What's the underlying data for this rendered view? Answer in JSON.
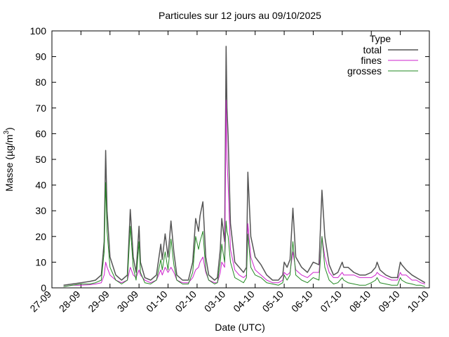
{
  "chart_data": {
    "type": "line",
    "title": "Particules sur 12 jours au 09/10/2025",
    "xlabel": "Date (UTC)",
    "ylabel": "Masse (µg/m",
    "ylabel_superscript": "3",
    "ylabel_suffix": ")",
    "ylim": [
      0,
      100
    ],
    "yticks": [
      0,
      10,
      20,
      30,
      40,
      50,
      60,
      70,
      80,
      90,
      100
    ],
    "xlim": [
      0,
      13
    ],
    "xticks": [
      "27-09",
      "28-09",
      "29-09",
      "30-09",
      "01-10",
      "02-10",
      "03-10",
      "04-10",
      "05-10",
      "06-10",
      "07-10",
      "08-10",
      "09-10",
      "10-10"
    ],
    "grid": false,
    "legend": {
      "title": "Type",
      "placement": "top-right"
    },
    "series": [
      {
        "name": "total",
        "color": "#555555",
        "points": [
          [
            0.4,
            1
          ],
          [
            0.7,
            1.5
          ],
          [
            1.0,
            2
          ],
          [
            1.3,
            2.5
          ],
          [
            1.5,
            3
          ],
          [
            1.7,
            5
          ],
          [
            1.8,
            18
          ],
          [
            1.85,
            53.5
          ],
          [
            1.9,
            30
          ],
          [
            2.0,
            12
          ],
          [
            2.2,
            5
          ],
          [
            2.4,
            3
          ],
          [
            2.6,
            5
          ],
          [
            2.7,
            30.5
          ],
          [
            2.8,
            12
          ],
          [
            2.9,
            6
          ],
          [
            3.0,
            24
          ],
          [
            3.05,
            10
          ],
          [
            3.2,
            4
          ],
          [
            3.4,
            3
          ],
          [
            3.6,
            5
          ],
          [
            3.75,
            17
          ],
          [
            3.8,
            11
          ],
          [
            3.9,
            21
          ],
          [
            4.0,
            12
          ],
          [
            4.1,
            26
          ],
          [
            4.2,
            14
          ],
          [
            4.3,
            5
          ],
          [
            4.5,
            3
          ],
          [
            4.7,
            3
          ],
          [
            4.85,
            10
          ],
          [
            4.95,
            27
          ],
          [
            5.05,
            22
          ],
          [
            5.1,
            28
          ],
          [
            5.2,
            33.5
          ],
          [
            5.3,
            12
          ],
          [
            5.4,
            5
          ],
          [
            5.6,
            3
          ],
          [
            5.7,
            4
          ],
          [
            5.8,
            15
          ],
          [
            5.85,
            27
          ],
          [
            5.95,
            18
          ],
          [
            6.0,
            94
          ],
          [
            6.03,
            70
          ],
          [
            6.07,
            59
          ],
          [
            6.15,
            25
          ],
          [
            6.3,
            10
          ],
          [
            6.45,
            8
          ],
          [
            6.6,
            6
          ],
          [
            6.7,
            8
          ],
          [
            6.75,
            45
          ],
          [
            6.85,
            20
          ],
          [
            7.0,
            12
          ],
          [
            7.2,
            9
          ],
          [
            7.4,
            5
          ],
          [
            7.6,
            3
          ],
          [
            7.8,
            3
          ],
          [
            7.95,
            5
          ],
          [
            8.0,
            10
          ],
          [
            8.1,
            8
          ],
          [
            8.2,
            11
          ],
          [
            8.3,
            31
          ],
          [
            8.4,
            12
          ],
          [
            8.6,
            8
          ],
          [
            8.8,
            6
          ],
          [
            9.0,
            10
          ],
          [
            9.2,
            9
          ],
          [
            9.3,
            38
          ],
          [
            9.4,
            20
          ],
          [
            9.55,
            9
          ],
          [
            9.7,
            5
          ],
          [
            9.85,
            6
          ],
          [
            10.0,
            10
          ],
          [
            10.05,
            8
          ],
          [
            10.2,
            8
          ],
          [
            10.4,
            6
          ],
          [
            10.6,
            5
          ],
          [
            10.8,
            5
          ],
          [
            11.0,
            6
          ],
          [
            11.15,
            8
          ],
          [
            11.2,
            10
          ],
          [
            11.3,
            7
          ],
          [
            11.5,
            5
          ],
          [
            11.7,
            4
          ],
          [
            11.9,
            4
          ],
          [
            12.0,
            10
          ],
          [
            12.05,
            9
          ],
          [
            12.2,
            7
          ],
          [
            12.4,
            5
          ],
          [
            12.55,
            4
          ],
          [
            12.7,
            3
          ],
          [
            12.85,
            2
          ]
        ]
      },
      {
        "name": "fines",
        "color": "#cc22cc",
        "points": [
          [
            0.4,
            0.5
          ],
          [
            0.7,
            1
          ],
          [
            1.0,
            1
          ],
          [
            1.3,
            1.2
          ],
          [
            1.5,
            1.5
          ],
          [
            1.7,
            2
          ],
          [
            1.8,
            5
          ],
          [
            1.85,
            10
          ],
          [
            1.9,
            8
          ],
          [
            2.0,
            5
          ],
          [
            2.2,
            3
          ],
          [
            2.4,
            2
          ],
          [
            2.6,
            3
          ],
          [
            2.7,
            8
          ],
          [
            2.8,
            5
          ],
          [
            2.9,
            4
          ],
          [
            3.0,
            7
          ],
          [
            3.05,
            5
          ],
          [
            3.2,
            3
          ],
          [
            3.4,
            2
          ],
          [
            3.6,
            3
          ],
          [
            3.75,
            7
          ],
          [
            3.8,
            5
          ],
          [
            3.9,
            8
          ],
          [
            4.0,
            6
          ],
          [
            4.1,
            8
          ],
          [
            4.2,
            6
          ],
          [
            4.3,
            3
          ],
          [
            4.5,
            2
          ],
          [
            4.7,
            2
          ],
          [
            4.85,
            4
          ],
          [
            4.95,
            7
          ],
          [
            5.05,
            8
          ],
          [
            5.1,
            10
          ],
          [
            5.2,
            12
          ],
          [
            5.3,
            6
          ],
          [
            5.4,
            3
          ],
          [
            5.6,
            2
          ],
          [
            5.7,
            2
          ],
          [
            5.8,
            6
          ],
          [
            5.85,
            10
          ],
          [
            5.95,
            8
          ],
          [
            6.0,
            73
          ],
          [
            6.03,
            50
          ],
          [
            6.07,
            40
          ],
          [
            6.15,
            15
          ],
          [
            6.3,
            7
          ],
          [
            6.45,
            5
          ],
          [
            6.6,
            4
          ],
          [
            6.7,
            5
          ],
          [
            6.75,
            25
          ],
          [
            6.85,
            12
          ],
          [
            7.0,
            7
          ],
          [
            7.2,
            5
          ],
          [
            7.4,
            3
          ],
          [
            7.6,
            2
          ],
          [
            7.8,
            2
          ],
          [
            7.95,
            3
          ],
          [
            8.0,
            6
          ],
          [
            8.1,
            5
          ],
          [
            8.2,
            6
          ],
          [
            8.3,
            14
          ],
          [
            8.4,
            7
          ],
          [
            8.6,
            5
          ],
          [
            8.8,
            4
          ],
          [
            9.0,
            6
          ],
          [
            9.2,
            6
          ],
          [
            9.3,
            20
          ],
          [
            9.4,
            12
          ],
          [
            9.55,
            6
          ],
          [
            9.7,
            4
          ],
          [
            9.85,
            4
          ],
          [
            10.0,
            6
          ],
          [
            10.05,
            5
          ],
          [
            10.2,
            5
          ],
          [
            10.4,
            5
          ],
          [
            10.6,
            4
          ],
          [
            10.8,
            4
          ],
          [
            11.0,
            4
          ],
          [
            11.15,
            5
          ],
          [
            11.2,
            6
          ],
          [
            11.3,
            5
          ],
          [
            11.5,
            4
          ],
          [
            11.7,
            3
          ],
          [
            11.9,
            3
          ],
          [
            12.0,
            6
          ],
          [
            12.05,
            5
          ],
          [
            12.2,
            5
          ],
          [
            12.4,
            3
          ],
          [
            12.55,
            3
          ],
          [
            12.7,
            2
          ],
          [
            12.85,
            1.5
          ]
        ]
      },
      {
        "name": "grosses",
        "color": "#228822",
        "points": [
          [
            0.4,
            0.5
          ],
          [
            0.7,
            1
          ],
          [
            1.0,
            1.5
          ],
          [
            1.3,
            1.5
          ],
          [
            1.5,
            2
          ],
          [
            1.7,
            3
          ],
          [
            1.8,
            14
          ],
          [
            1.85,
            41
          ],
          [
            1.9,
            22
          ],
          [
            2.0,
            8
          ],
          [
            2.2,
            3
          ],
          [
            2.4,
            1.5
          ],
          [
            2.6,
            3
          ],
          [
            2.7,
            24
          ],
          [
            2.8,
            8
          ],
          [
            2.9,
            3
          ],
          [
            3.0,
            18
          ],
          [
            3.05,
            6
          ],
          [
            3.2,
            2
          ],
          [
            3.4,
            1.5
          ],
          [
            3.6,
            3
          ],
          [
            3.75,
            11
          ],
          [
            3.8,
            7
          ],
          [
            3.9,
            14
          ],
          [
            4.0,
            7
          ],
          [
            4.1,
            19
          ],
          [
            4.2,
            9
          ],
          [
            4.3,
            3
          ],
          [
            4.5,
            1.5
          ],
          [
            4.7,
            1.5
          ],
          [
            4.85,
            6
          ],
          [
            4.95,
            20
          ],
          [
            5.05,
            15
          ],
          [
            5.1,
            18
          ],
          [
            5.2,
            22
          ],
          [
            5.3,
            7
          ],
          [
            5.4,
            3
          ],
          [
            5.6,
            1.5
          ],
          [
            5.7,
            2
          ],
          [
            5.8,
            10
          ],
          [
            5.85,
            17
          ],
          [
            5.95,
            10
          ],
          [
            6.0,
            26
          ],
          [
            6.03,
            22
          ],
          [
            6.07,
            20
          ],
          [
            6.15,
            10
          ],
          [
            6.3,
            4
          ],
          [
            6.45,
            3
          ],
          [
            6.6,
            2
          ],
          [
            6.7,
            4
          ],
          [
            6.75,
            21
          ],
          [
            6.85,
            8
          ],
          [
            7.0,
            5
          ],
          [
            7.2,
            4
          ],
          [
            7.4,
            2
          ],
          [
            7.6,
            1.5
          ],
          [
            7.8,
            1
          ],
          [
            7.95,
            2
          ],
          [
            8.0,
            5
          ],
          [
            8.1,
            3
          ],
          [
            8.2,
            5
          ],
          [
            8.3,
            18
          ],
          [
            8.4,
            5
          ],
          [
            8.6,
            3
          ],
          [
            8.8,
            2
          ],
          [
            9.0,
            4
          ],
          [
            9.2,
            3
          ],
          [
            9.3,
            20
          ],
          [
            9.4,
            8
          ],
          [
            9.55,
            3
          ],
          [
            9.7,
            1.5
          ],
          [
            9.85,
            2
          ],
          [
            10.0,
            4
          ],
          [
            10.05,
            3
          ],
          [
            10.2,
            2
          ],
          [
            10.4,
            1.5
          ],
          [
            10.6,
            1
          ],
          [
            10.8,
            1
          ],
          [
            11.0,
            2
          ],
          [
            11.15,
            3
          ],
          [
            11.2,
            4
          ],
          [
            11.3,
            2
          ],
          [
            11.5,
            1.5
          ],
          [
            11.7,
            1
          ],
          [
            11.9,
            1
          ],
          [
            12.0,
            4
          ],
          [
            12.05,
            3
          ],
          [
            12.2,
            2
          ],
          [
            12.4,
            1.5
          ],
          [
            12.55,
            1
          ],
          [
            12.7,
            1
          ],
          [
            12.85,
            0.5
          ]
        ]
      }
    ]
  }
}
